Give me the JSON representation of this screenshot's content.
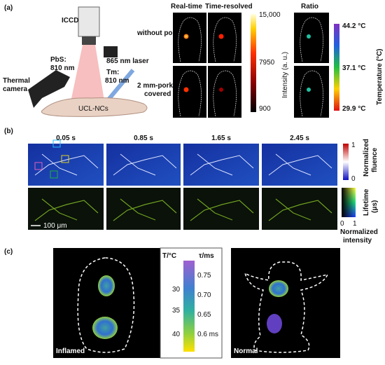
{
  "panel_a": {
    "label": "(a)",
    "iccd": "ICCD",
    "laser": "865 nm laser",
    "pbs": "PbS:",
    "pbs_wl": "810 nm",
    "tm": "Tm:",
    "tm_wl": "810 nm",
    "thermal": "Thermal",
    "camera": "camera",
    "ucl": "UCL-NCs",
    "without_pork": "without pork",
    "pork_line1": "2 mm-pork",
    "pork_line2": "covered",
    "real_time": "Real-time",
    "time_resolved": "Time-resolved",
    "ratio": "Ratio",
    "intensity_ticks": [
      "15,000",
      "7950",
      "900"
    ],
    "intensity_label": "Intensity (a. u.)",
    "temp_ticks": [
      "44.2 °C",
      "37.1 °C",
      "29.9 °C"
    ],
    "temp_label": "Temperature (°C)"
  },
  "panel_b": {
    "label": "(b)",
    "times": [
      "0.05 s",
      "0.85 s",
      "1.65 s",
      "2.45 s"
    ],
    "fluence_ticks": [
      "1",
      "0"
    ],
    "fluence_label_1": "Normalized",
    "fluence_label_2": "fluence",
    "lifetime_label_1": "Lifetime",
    "lifetime_label_2": "(μs)",
    "intensity_ticks": [
      "0",
      "1"
    ],
    "intensity_label_1": "Normalized",
    "intensity_label_2": "intensity",
    "scale": "100 μm"
  },
  "panel_c": {
    "label": "(c)",
    "t_header": "T/°C",
    "tau_header": "τ/ms",
    "t_ticks": [
      "30",
      "35",
      "40"
    ],
    "tau_ticks": [
      "0.75",
      "0.70",
      "0.65",
      "0.6 ms"
    ],
    "inflamed": "Inflamed",
    "normal": "Normal"
  }
}
